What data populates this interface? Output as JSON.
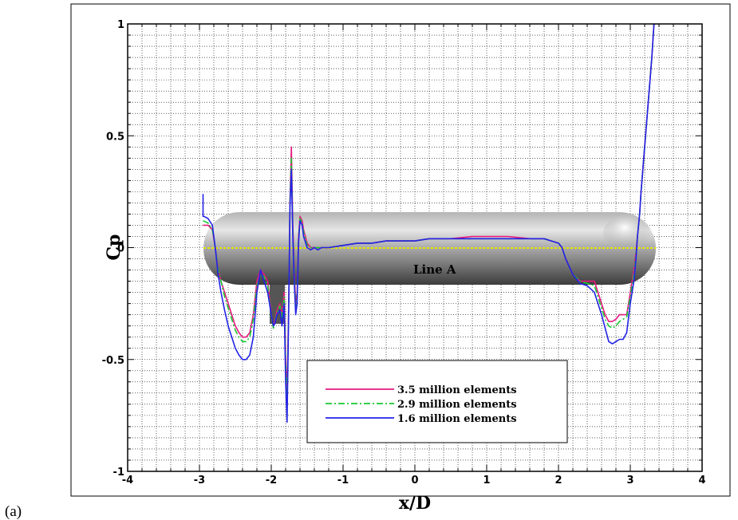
{
  "panel_label": "(a)",
  "chart_data": {
    "type": "line",
    "xlabel": "x/D",
    "ylabel": "Cp",
    "xlim": [
      -4,
      4
    ],
    "ylim": [
      -1,
      1
    ],
    "xticks": [
      "-4",
      "-3",
      "-2",
      "-1",
      "0",
      "1",
      "2",
      "3",
      "4"
    ],
    "yticks": [
      "-1",
      "-0.5",
      "0",
      "0.5",
      "1"
    ],
    "grid": true,
    "legend_position": "lower-center",
    "annotation": "Line A",
    "colors": {
      "line_a": "#e6e600",
      "hull": "#6f6f6f"
    },
    "series": [
      {
        "name": "3.5 million elements",
        "color": "#e6197f",
        "dash": "solid",
        "x": [
          -2.95,
          -2.88,
          -2.82,
          -2.78,
          -2.74,
          -2.7,
          -2.65,
          -2.6,
          -2.55,
          -2.5,
          -2.45,
          -2.4,
          -2.35,
          -2.3,
          -2.25,
          -2.2,
          -2.15,
          -2.1,
          -2.05,
          -2.0,
          -1.97,
          -1.95,
          -1.92,
          -1.88,
          -1.85,
          -1.82,
          -1.8,
          -1.78,
          -1.76,
          -1.75,
          -1.74,
          -1.72,
          -1.7,
          -1.68,
          -1.66,
          -1.64,
          -1.62,
          -1.6,
          -1.57,
          -1.55,
          -1.5,
          -1.45,
          -1.4,
          -1.35,
          -1.3,
          -1.2,
          -1.0,
          -0.8,
          -0.6,
          -0.4,
          -0.2,
          0.0,
          0.2,
          0.5,
          0.8,
          1.0,
          1.3,
          1.6,
          1.8,
          1.9,
          2.0,
          2.05,
          2.1,
          2.2,
          2.3,
          2.4,
          2.5,
          2.55,
          2.6,
          2.65,
          2.7,
          2.75,
          2.8,
          2.85,
          2.9,
          2.95,
          3.0,
          3.05,
          3.08,
          3.1,
          3.13,
          3.15,
          3.2,
          3.25,
          3.3,
          3.33,
          3.35
        ],
        "y": [
          0.1,
          0.1,
          0.08,
          0.0,
          -0.1,
          -0.15,
          -0.2,
          -0.25,
          -0.3,
          -0.35,
          -0.38,
          -0.4,
          -0.4,
          -0.38,
          -0.3,
          -0.15,
          -0.1,
          -0.12,
          -0.15,
          -0.3,
          -0.35,
          -0.33,
          -0.28,
          -0.25,
          -0.3,
          -0.2,
          -0.5,
          -0.65,
          -0.3,
          -0.1,
          0.2,
          0.45,
          0.1,
          -0.1,
          -0.25,
          -0.2,
          0.05,
          0.14,
          0.12,
          0.08,
          0.02,
          0.0,
          0.0,
          0.0,
          0.0,
          0.0,
          0.01,
          0.02,
          0.02,
          0.03,
          0.03,
          0.03,
          0.04,
          0.04,
          0.05,
          0.05,
          0.05,
          0.04,
          0.04,
          0.03,
          0.02,
          0.0,
          -0.05,
          -0.12,
          -0.15,
          -0.15,
          -0.15,
          -0.2,
          -0.25,
          -0.3,
          -0.33,
          -0.33,
          -0.32,
          -0.3,
          -0.3,
          -0.3,
          -0.2,
          -0.1,
          -0.02,
          0.05,
          0.15,
          0.25,
          0.45,
          0.65,
          0.85,
          1.0,
          1.0
        ]
      },
      {
        "name": "2.9 million elements",
        "color": "#19c832",
        "dash": "dashdot",
        "x": [
          -2.95,
          -2.88,
          -2.82,
          -2.78,
          -2.74,
          -2.7,
          -2.65,
          -2.6,
          -2.55,
          -2.5,
          -2.45,
          -2.4,
          -2.35,
          -2.3,
          -2.25,
          -2.2,
          -2.15,
          -2.1,
          -2.05,
          -2.0,
          -1.97,
          -1.95,
          -1.92,
          -1.88,
          -1.85,
          -1.82,
          -1.8,
          -1.78,
          -1.76,
          -1.75,
          -1.74,
          -1.72,
          -1.7,
          -1.68,
          -1.66,
          -1.64,
          -1.62,
          -1.6,
          -1.57,
          -1.55,
          -1.5,
          -1.45,
          -1.4,
          -1.35,
          -1.3,
          -1.2,
          -1.0,
          -0.8,
          -0.6,
          -0.4,
          -0.2,
          0.0,
          0.2,
          0.5,
          0.8,
          1.0,
          1.3,
          1.6,
          1.8,
          1.9,
          2.0,
          2.05,
          2.1,
          2.2,
          2.3,
          2.4,
          2.5,
          2.55,
          2.6,
          2.65,
          2.7,
          2.75,
          2.8,
          2.85,
          2.9,
          2.95,
          3.0,
          3.05,
          3.08,
          3.1,
          3.13,
          3.15,
          3.2,
          3.25,
          3.3,
          3.33,
          3.35
        ],
        "y": [
          0.12,
          0.11,
          0.08,
          0.0,
          -0.1,
          -0.15,
          -0.22,
          -0.27,
          -0.32,
          -0.37,
          -0.4,
          -0.42,
          -0.42,
          -0.4,
          -0.32,
          -0.17,
          -0.12,
          -0.13,
          -0.17,
          -0.31,
          -0.36,
          -0.34,
          -0.29,
          -0.26,
          -0.31,
          -0.22,
          -0.52,
          -0.7,
          -0.32,
          -0.1,
          0.2,
          0.4,
          0.08,
          -0.12,
          -0.27,
          -0.22,
          0.04,
          0.13,
          0.11,
          0.07,
          0.01,
          0.0,
          0.0,
          0.0,
          0.0,
          0.0,
          0.01,
          0.02,
          0.02,
          0.03,
          0.03,
          0.03,
          0.04,
          0.04,
          0.04,
          0.04,
          0.04,
          0.04,
          0.04,
          0.03,
          0.02,
          0.0,
          -0.05,
          -0.12,
          -0.15,
          -0.16,
          -0.17,
          -0.22,
          -0.27,
          -0.32,
          -0.35,
          -0.36,
          -0.35,
          -0.33,
          -0.32,
          -0.31,
          -0.22,
          -0.12,
          -0.03,
          0.05,
          0.15,
          0.25,
          0.45,
          0.65,
          0.85,
          1.0,
          1.0
        ]
      },
      {
        "name": "1.6 million elements",
        "color": "#2323e6",
        "dash": "solid",
        "x": [
          -2.95,
          -2.95,
          -2.94,
          -2.88,
          -2.82,
          -2.78,
          -2.74,
          -2.7,
          -2.65,
          -2.6,
          -2.55,
          -2.5,
          -2.45,
          -2.4,
          -2.35,
          -2.3,
          -2.25,
          -2.2,
          -2.15,
          -2.1,
          -2.05,
          -2.0,
          -1.97,
          -1.95,
          -1.92,
          -1.88,
          -1.85,
          -1.82,
          -1.8,
          -1.78,
          -1.76,
          -1.75,
          -1.74,
          -1.72,
          -1.7,
          -1.68,
          -1.66,
          -1.64,
          -1.62,
          -1.6,
          -1.57,
          -1.55,
          -1.5,
          -1.45,
          -1.4,
          -1.35,
          -1.3,
          -1.2,
          -1.0,
          -0.8,
          -0.6,
          -0.4,
          -0.2,
          0.0,
          0.2,
          0.5,
          0.8,
          1.0,
          1.3,
          1.6,
          1.8,
          1.9,
          2.0,
          2.05,
          2.1,
          2.2,
          2.3,
          2.4,
          2.5,
          2.55,
          2.6,
          2.65,
          2.7,
          2.75,
          2.8,
          2.85,
          2.9,
          2.95,
          3.0,
          3.05,
          3.08,
          3.1,
          3.13,
          3.15,
          3.2,
          3.25,
          3.3,
          3.33,
          3.35
        ],
        "y": [
          0.24,
          0.14,
          0.14,
          0.13,
          0.1,
          0.0,
          -0.12,
          -0.2,
          -0.28,
          -0.35,
          -0.4,
          -0.45,
          -0.48,
          -0.5,
          -0.5,
          -0.48,
          -0.4,
          -0.2,
          -0.1,
          -0.15,
          -0.2,
          -0.3,
          -0.35,
          -0.34,
          -0.3,
          -0.28,
          -0.35,
          -0.25,
          -0.6,
          -0.78,
          -0.35,
          -0.1,
          0.18,
          0.35,
          0.05,
          -0.15,
          -0.3,
          -0.25,
          0.02,
          0.12,
          0.1,
          0.05,
          0.0,
          -0.01,
          0.0,
          -0.01,
          0.0,
          0.0,
          0.01,
          0.02,
          0.02,
          0.03,
          0.03,
          0.03,
          0.04,
          0.04,
          0.04,
          0.04,
          0.04,
          0.04,
          0.04,
          0.03,
          0.02,
          0.0,
          -0.05,
          -0.12,
          -0.16,
          -0.17,
          -0.2,
          -0.25,
          -0.3,
          -0.36,
          -0.42,
          -0.43,
          -0.42,
          -0.41,
          -0.41,
          -0.38,
          -0.25,
          -0.15,
          -0.05,
          0.05,
          0.15,
          0.25,
          0.45,
          0.65,
          0.85,
          1.0,
          1.0
        ]
      }
    ]
  }
}
